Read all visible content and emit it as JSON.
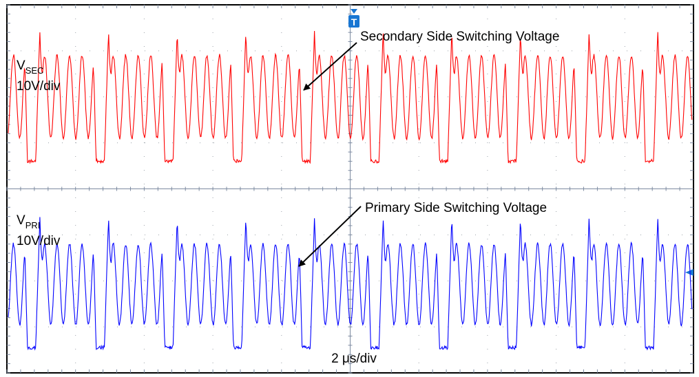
{
  "chart_data": {
    "type": "line",
    "title": "",
    "timebase_label": "2 μs/div",
    "grid": "dotted 10 x 8 divisions",
    "series": [
      {
        "key": "sec",
        "label_main": "V",
        "label_sub": "SEC",
        "scale_label": "10V/div",
        "annotation": "Secondary Side Switching Voltage",
        "color": "#ff0000",
        "pulse_period_us": 2.0,
        "pulses_visible": 10,
        "high_level_div": 3.2,
        "low_level_div": 0.35,
        "ringing_peak_div": 2.65,
        "ringing_trough_div": 0.85,
        "ringing_cycles_per_pulse": 4.5
      },
      {
        "key": "pri",
        "label_main": "V",
        "label_sub": "PRI",
        "scale_label": "10V/div",
        "annotation": "Primary Side Switching Voltage",
        "color": "#0000ff",
        "pulse_period_us": 2.0,
        "pulses_visible": 10,
        "high_level_div": 3.05,
        "low_level_div": 0.2,
        "ringing_peak_div": 2.45,
        "ringing_trough_div": 0.7,
        "ringing_cycles_per_pulse": 4.5
      }
    ],
    "markers": {
      "trigger": "T",
      "trigger_color": "#1976d2",
      "level_marker_color": "#1976d2"
    }
  }
}
